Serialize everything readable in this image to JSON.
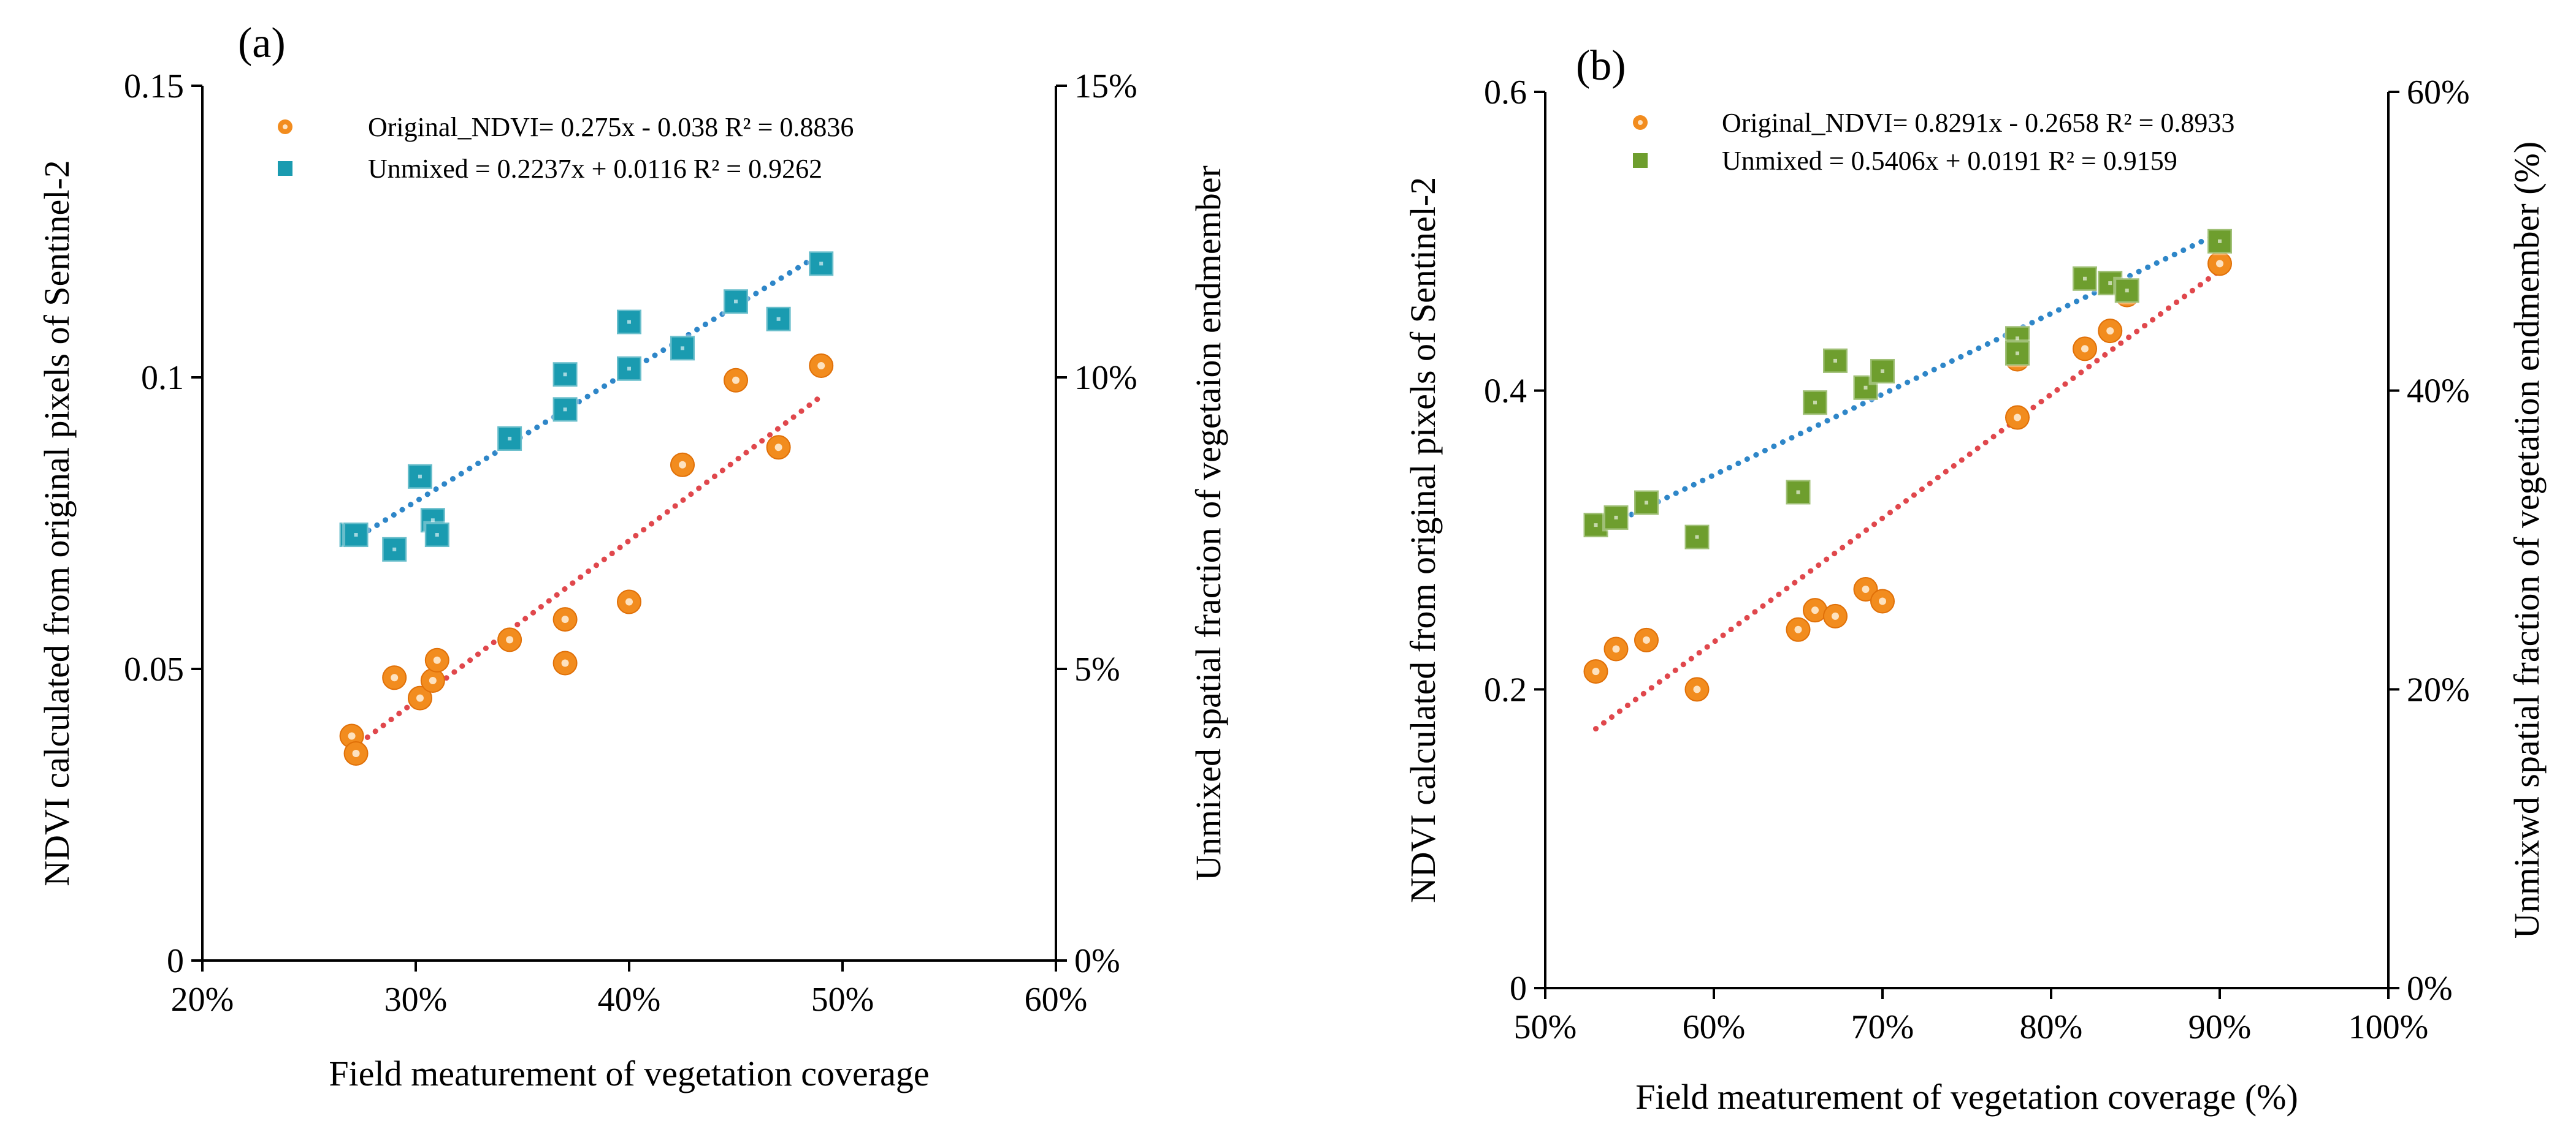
{
  "chart_data": [
    {
      "type": "scatter",
      "panel_label": "(a)",
      "xlabel": "Field meaturement of vegetation coverage",
      "ylabel": "NDVI calculated from original pixels of Sentinel-2",
      "y2label": "Unmixed spatial fraction  of vegetaion endmember",
      "xlim": [
        0.2,
        0.6
      ],
      "ylim": [
        0,
        0.15
      ],
      "y2lim": [
        0,
        0.15
      ],
      "x_ticks": [
        0.2,
        0.3,
        0.4,
        0.5,
        0.6
      ],
      "x_tick_labels": [
        "20%",
        "30%",
        "40%",
        "50%",
        "60%"
      ],
      "y_ticks": [
        0,
        0.05,
        0.1,
        0.15
      ],
      "y_tick_labels": [
        "0",
        "0.05",
        "0.1",
        "0.15"
      ],
      "y2_ticks": [
        0,
        0.05,
        0.1,
        0.15
      ],
      "y2_tick_labels": [
        "0%",
        "5%",
        "10%",
        "15%"
      ],
      "grid": false,
      "legend_position": "top-left",
      "series": [
        {
          "name": "Original_NDVI",
          "legend_text": "Original_NDVI= 0.275x - 0.038 R² = 0.8836",
          "marker": "circle",
          "color": "#F28C1E",
          "trend_color": "#E0474C",
          "axis": "left",
          "trend": {
            "slope": 0.275,
            "intercept": -0.038,
            "x_range": [
              0.27,
              0.49
            ]
          },
          "points": [
            [
              0.27,
              0.0385
            ],
            [
              0.272,
              0.0355
            ],
            [
              0.29,
              0.0485
            ],
            [
              0.302,
              0.045
            ],
            [
              0.308,
              0.048
            ],
            [
              0.31,
              0.0515
            ],
            [
              0.344,
              0.055
            ],
            [
              0.37,
              0.0585
            ],
            [
              0.37,
              0.051
            ],
            [
              0.4,
              0.0615
            ],
            [
              0.425,
              0.085
            ],
            [
              0.45,
              0.0995
            ],
            [
              0.47,
              0.088
            ],
            [
              0.49,
              0.102
            ]
          ]
        },
        {
          "name": "Unmixed",
          "legend_text": "Unmixed = 0.2237x + 0.0116 R² = 0.9262",
          "marker": "square",
          "color": "#1A9BB0",
          "trend_color": "#2E86C8",
          "axis": "right",
          "trend": {
            "slope": 0.2237,
            "intercept": 0.0116,
            "x_range": [
              0.27,
              0.49
            ]
          },
          "points": [
            [
              0.27,
              0.073
            ],
            [
              0.272,
              0.073
            ],
            [
              0.29,
              0.0705
            ],
            [
              0.302,
              0.083
            ],
            [
              0.308,
              0.0755
            ],
            [
              0.31,
              0.073
            ],
            [
              0.344,
              0.0895
            ],
            [
              0.37,
              0.1005
            ],
            [
              0.37,
              0.0945
            ],
            [
              0.4,
              0.1095
            ],
            [
              0.4,
              0.1015
            ],
            [
              0.425,
              0.105
            ],
            [
              0.45,
              0.113
            ],
            [
              0.47,
              0.11
            ],
            [
              0.49,
              0.1195
            ]
          ]
        }
      ]
    },
    {
      "type": "scatter",
      "panel_label": "(b)",
      "xlabel": "Field meaturement of vegetation coverage (%)",
      "ylabel": "NDVI calculated from original pixels of Sentinel-2",
      "y2label": "Unmixwd spatial fraction  of vegetation endmember (%)",
      "xlim": [
        0.5,
        1.0
      ],
      "ylim": [
        0,
        0.6
      ],
      "y2lim": [
        0,
        0.6
      ],
      "x_ticks": [
        0.5,
        0.6,
        0.7,
        0.8,
        0.9,
        1.0
      ],
      "x_tick_labels": [
        "50%",
        "60%",
        "70%",
        "80%",
        "90%",
        "100%"
      ],
      "y_ticks": [
        0,
        0.2,
        0.4,
        0.6
      ],
      "y_tick_labels": [
        "0",
        "0.2",
        "0.4",
        "0.6"
      ],
      "y2_ticks": [
        0,
        0.2,
        0.4,
        0.6
      ],
      "y2_tick_labels": [
        "0%",
        "20%",
        "40%",
        "60%"
      ],
      "grid": false,
      "legend_position": "top-center",
      "series": [
        {
          "name": "Original_NDVI",
          "legend_text": "Original_NDVI= 0.8291x - 0.2658 R² = 0.8933",
          "marker": "circle",
          "color": "#F28C1E",
          "trend_color": "#E0474C",
          "axis": "left",
          "trend": {
            "slope": 0.8291,
            "intercept": -0.2658,
            "x_range": [
              0.53,
              0.9
            ]
          },
          "points": [
            [
              0.53,
              0.212
            ],
            [
              0.542,
              0.227
            ],
            [
              0.56,
              0.233
            ],
            [
              0.59,
              0.2
            ],
            [
              0.65,
              0.24
            ],
            [
              0.66,
              0.253
            ],
            [
              0.672,
              0.249
            ],
            [
              0.69,
              0.267
            ],
            [
              0.7,
              0.259
            ],
            [
              0.78,
              0.421
            ],
            [
              0.78,
              0.382
            ],
            [
              0.82,
              0.428
            ],
            [
              0.835,
              0.44
            ],
            [
              0.845,
              0.464
            ],
            [
              0.9,
              0.485
            ]
          ]
        },
        {
          "name": "Unmixed",
          "legend_text": "Unmixed = 0.5406x + 0.0191 R² = 0.9159",
          "marker": "square",
          "color": "#6E9E2E",
          "trend_color": "#2E86C8",
          "axis": "right",
          "trend": {
            "slope": 0.5406,
            "intercept": 0.0191,
            "x_range": [
              0.53,
              0.9
            ]
          },
          "points": [
            [
              0.53,
              0.31
            ],
            [
              0.542,
              0.315
            ],
            [
              0.56,
              0.325
            ],
            [
              0.59,
              0.302
            ],
            [
              0.65,
              0.332
            ],
            [
              0.66,
              0.392
            ],
            [
              0.672,
              0.42
            ],
            [
              0.69,
              0.402
            ],
            [
              0.7,
              0.413
            ],
            [
              0.78,
              0.435
            ],
            [
              0.78,
              0.425
            ],
            [
              0.82,
              0.475
            ],
            [
              0.835,
              0.472
            ],
            [
              0.845,
              0.467
            ],
            [
              0.9,
              0.5
            ]
          ]
        }
      ]
    }
  ]
}
